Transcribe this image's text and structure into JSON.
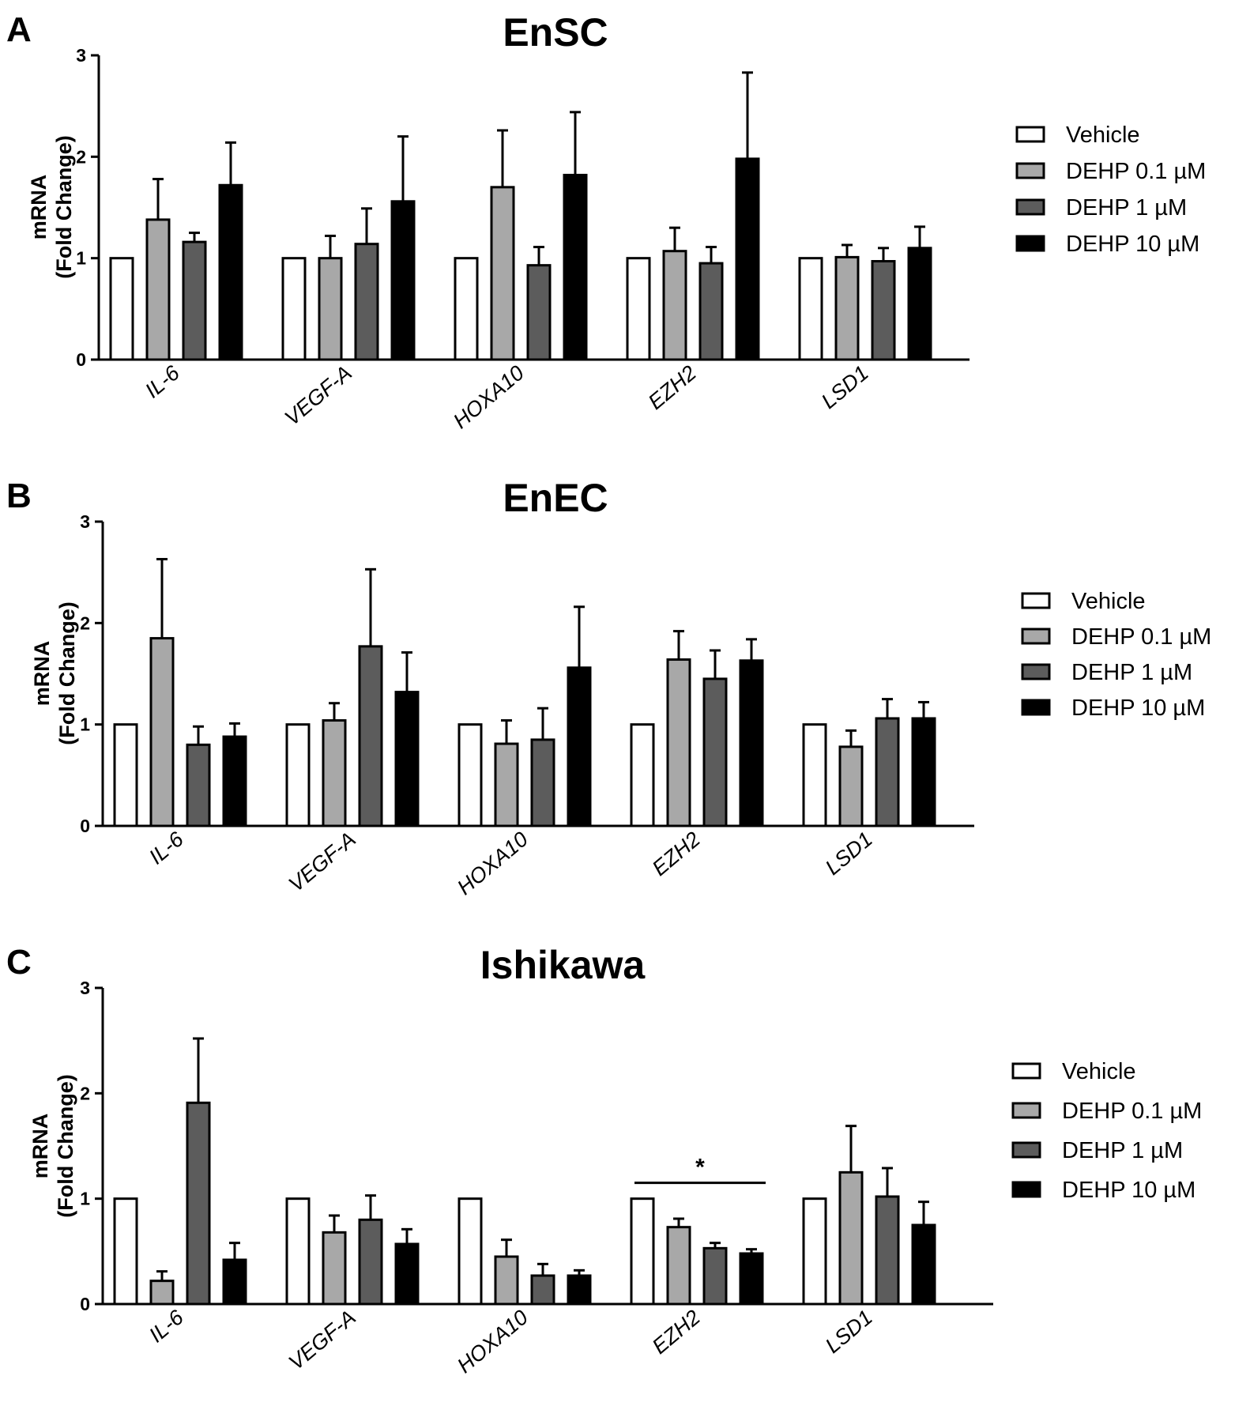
{
  "figure": {
    "colors": {
      "Vehicle": "#ffffff",
      "DEHP 0.1 µM": "#a8a8a8",
      "DEHP 1 µM": "#5c5c5c",
      "DEHP 10 µM": "#000000",
      "stroke": "#000000"
    }
  },
  "chart_data": [
    {
      "type": "bar",
      "panel_letter": "A",
      "title": "EnSC",
      "ylabel": "mRNA",
      "ylabel2": "(Fold Change)",
      "xlabel": "",
      "ylim": [
        0,
        3
      ],
      "yticks": [
        "0",
        "1",
        "2",
        "3"
      ],
      "categories": [
        "IL-6",
        "VEGF-A",
        "HOXA10",
        "EZH2",
        "LSD1"
      ],
      "legend": [
        "Vehicle",
        "DEHP 0.1 µM",
        "DEHP 1 µM",
        "DEHP 10 µM"
      ],
      "series": [
        {
          "name": "Vehicle",
          "values": [
            1.0,
            1.0,
            1.0,
            1.0,
            1.0
          ],
          "errors": [
            0,
            0,
            0,
            0,
            0
          ]
        },
        {
          "name": "DEHP 0.1 µM",
          "values": [
            1.38,
            1.0,
            1.7,
            1.07,
            1.01
          ],
          "errors": [
            0.4,
            0.22,
            0.56,
            0.23,
            0.12
          ]
        },
        {
          "name": "DEHP 1 µM",
          "values": [
            1.16,
            1.14,
            0.93,
            0.95,
            0.97
          ],
          "errors": [
            0.09,
            0.35,
            0.18,
            0.16,
            0.13
          ]
        },
        {
          "name": "DEHP 10 µM",
          "values": [
            1.72,
            1.56,
            1.82,
            1.98,
            1.1
          ],
          "errors": [
            0.42,
            0.64,
            0.62,
            0.85,
            0.21
          ]
        }
      ],
      "significance": []
    },
    {
      "type": "bar",
      "panel_letter": "B",
      "title": "EnEC",
      "ylabel": "mRNA",
      "ylabel2": "(Fold Change)",
      "xlabel": "",
      "ylim": [
        0,
        3
      ],
      "yticks": [
        "0",
        "1",
        "2",
        "3"
      ],
      "categories": [
        "IL-6",
        "VEGF-A",
        "HOXA10",
        "EZH2",
        "LSD1"
      ],
      "legend": [
        "Vehicle",
        "DEHP 0.1 µM",
        "DEHP 1 µM",
        "DEHP 10 µM"
      ],
      "series": [
        {
          "name": "Vehicle",
          "values": [
            1.0,
            1.0,
            1.0,
            1.0,
            1.0
          ],
          "errors": [
            0,
            0,
            0,
            0,
            0
          ]
        },
        {
          "name": "DEHP 0.1 µM",
          "values": [
            1.85,
            1.04,
            0.81,
            1.64,
            0.78
          ],
          "errors": [
            0.78,
            0.17,
            0.23,
            0.28,
            0.16
          ]
        },
        {
          "name": "DEHP 1 µM",
          "values": [
            0.8,
            1.77,
            0.85,
            1.45,
            1.06
          ],
          "errors": [
            0.18,
            0.76,
            0.31,
            0.28,
            0.19
          ]
        },
        {
          "name": "DEHP 10 µM",
          "values": [
            0.88,
            1.32,
            1.56,
            1.63,
            1.06
          ],
          "errors": [
            0.13,
            0.39,
            0.6,
            0.21,
            0.16
          ]
        }
      ],
      "significance": []
    },
    {
      "type": "bar",
      "panel_letter": "C",
      "title": "Ishikawa",
      "ylabel": "mRNA",
      "ylabel2": "(Fold Change)",
      "xlabel": "",
      "ylim": [
        0,
        3
      ],
      "yticks": [
        "0",
        "1",
        "2",
        "3"
      ],
      "categories": [
        "IL-6",
        "VEGF-A",
        "HOXA10",
        "EZH2",
        "LSD1"
      ],
      "legend": [
        "Vehicle",
        "DEHP 0.1 µM",
        "DEHP 1 µM",
        "DEHP 10 µM"
      ],
      "series": [
        {
          "name": "Vehicle",
          "values": [
            1.0,
            1.0,
            1.0,
            1.0,
            1.0
          ],
          "errors": [
            0,
            0,
            0,
            0,
            0
          ]
        },
        {
          "name": "DEHP 0.1 µM",
          "values": [
            0.22,
            0.68,
            0.45,
            0.73,
            1.25
          ],
          "errors": [
            0.09,
            0.16,
            0.16,
            0.08,
            0.44
          ]
        },
        {
          "name": "DEHP 1 µM",
          "values": [
            1.91,
            0.8,
            0.27,
            0.53,
            1.02
          ],
          "errors": [
            0.61,
            0.23,
            0.11,
            0.05,
            0.27
          ]
        },
        {
          "name": "DEHP 10 µM",
          "values": [
            0.42,
            0.57,
            0.27,
            0.48,
            0.75
          ],
          "errors": [
            0.16,
            0.14,
            0.05,
            0.04,
            0.22
          ]
        }
      ],
      "significance": [
        {
          "label": "*",
          "category": "EZH2",
          "from_series": 0,
          "to_series": 3,
          "y": 1.15
        }
      ]
    }
  ]
}
